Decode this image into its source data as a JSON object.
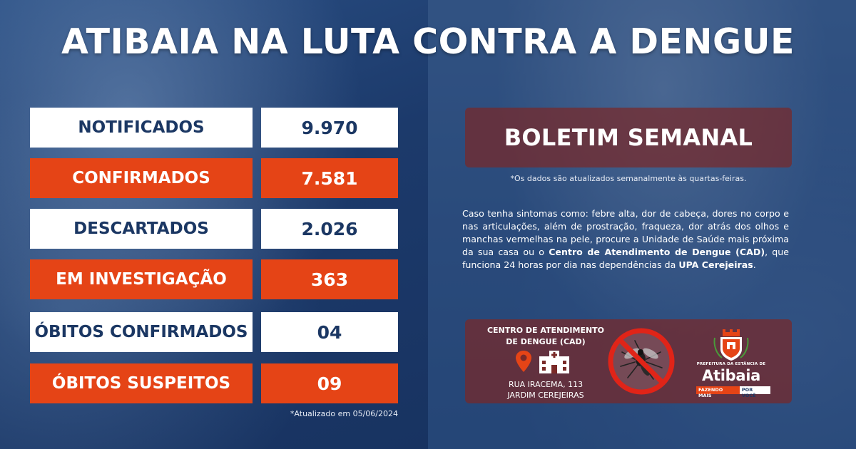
{
  "title": "ATIBAIA NA LUTA CONTRA A DENGUE",
  "stats": [
    {
      "label": "NOTIFICADOS",
      "value": "9.970",
      "style": "light"
    },
    {
      "label": "CONFIRMADOS",
      "value": "7.581",
      "style": "orange"
    },
    {
      "label": "DESCARTADOS",
      "value": "2.026",
      "style": "light"
    },
    {
      "label": "EM INVESTIGAÇÃO",
      "value": "363",
      "style": "orange"
    },
    {
      "label": "ÓBITOS CONFIRMADOS",
      "value": "04",
      "style": "light"
    },
    {
      "label": "ÓBITOS SUSPEITOS",
      "value": "09",
      "style": "orange"
    }
  ],
  "updated_note": "*Atualizado em 05/06/2024",
  "bulletin": {
    "title": "BOLETIM SEMANAL",
    "note": "*Os dados são atualizados semanalmente às quartas-feiras."
  },
  "info": {
    "part1": "Caso tenha sintomas como: febre alta, dor de cabeça, dores no corpo e nas articulações, além de prostração, fraqueza, dor atrás dos olhos e manchas vermelhas na pele, procure a Unidade de Saúde mais próxima da sua casa ou o ",
    "bold1": "Centro de Atendimento de Dengue (CAD)",
    "part2": ", que funciona 24 horas por dia nas dependências da ",
    "bold2": "UPA Cerejeiras",
    "part3": "."
  },
  "cad": {
    "title_line1": "CENTRO DE ATENDIMENTO",
    "title_line2": "DE DENGUE (CAD)",
    "address_line1": "RUA IRACEMA, 113",
    "address_line2": "JARDIM CEREJEIRAS",
    "icons": [
      "map-pin-icon",
      "hospital-icon",
      "no-mosquito-icon"
    ]
  },
  "logo": {
    "prefix": "PREFEITURA DA ESTÂNCIA DE",
    "name": "Atibaia",
    "slogan_a": "FAZENDO MAIS",
    "slogan_b": "POR VOCÊ"
  },
  "colors": {
    "navy": "#1b3763",
    "orange": "#e54416",
    "white": "#ffffff",
    "maroon_panel": "#782828"
  }
}
